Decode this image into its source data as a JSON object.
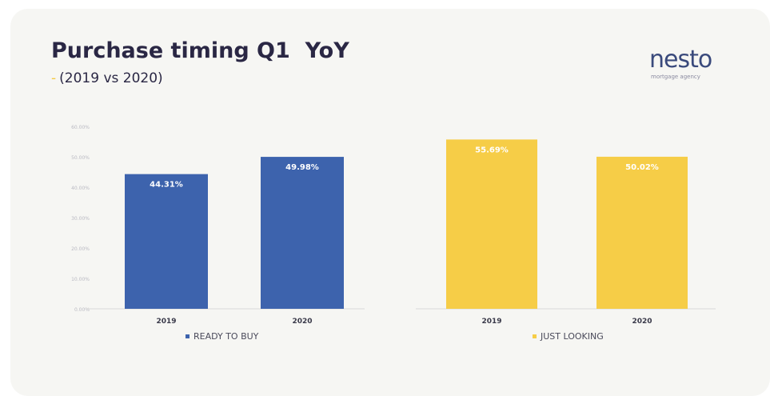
{
  "title": "Purchase timing Q1  YoY",
  "subtitle": "(2019 vs 2020)",
  "logo": {
    "word": "nesto",
    "tagline": "mortgage agency"
  },
  "colors": {
    "ready": "#3d63ad",
    "looking": "#f6cd47",
    "title": "#2a2744"
  },
  "chart_data": [
    {
      "type": "bar",
      "categories": [
        "2019",
        "2020"
      ],
      "series": [
        {
          "name": "READY TO BUY",
          "values": [
            44.31,
            49.98
          ]
        }
      ],
      "data_labels": [
        "44.31%",
        "49.98%"
      ],
      "ylim": [
        0,
        60
      ],
      "yticks": [
        "0.00%",
        "10.00%",
        "20.00%",
        "30.00%",
        "40.00%",
        "50.00%",
        "60.00%"
      ],
      "grid": false,
      "legend": "bottom"
    },
    {
      "type": "bar",
      "categories": [
        "2019",
        "2020"
      ],
      "series": [
        {
          "name": "JUST LOOKING",
          "values": [
            55.69,
            50.02
          ]
        }
      ],
      "data_labels": [
        "55.69%",
        "50.02%"
      ],
      "ylim": [
        0,
        60
      ],
      "grid": false,
      "legend": "bottom"
    }
  ]
}
